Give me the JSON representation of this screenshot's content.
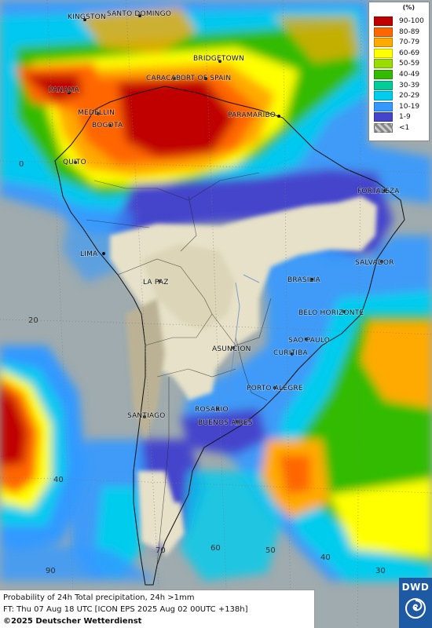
{
  "map": {
    "colors": {
      "ocean": "#9fabae",
      "land_dry": "#e6e1c8",
      "terrain": "#cfc7a8"
    },
    "grid_labels": [
      "0",
      "20",
      "40",
      "70",
      "60",
      "50",
      "40",
      "30",
      "90"
    ],
    "cities": [
      {
        "name": "KINGSTON"
      },
      {
        "name": "SANTO DOMINGO"
      },
      {
        "name": "BRIDGETOWN"
      },
      {
        "name": "PANAMA"
      },
      {
        "name": "CARACAS"
      },
      {
        "name": "PORT OF SPAIN"
      },
      {
        "name": "MEDELLIN"
      },
      {
        "name": "BOGOTA"
      },
      {
        "name": "PARAMARIBO"
      },
      {
        "name": "QUITO"
      },
      {
        "name": "FORTALEZA"
      },
      {
        "name": "LIMA"
      },
      {
        "name": "SALVADOR"
      },
      {
        "name": "BRASILIA"
      },
      {
        "name": "LA PAZ"
      },
      {
        "name": "BELO HORIZONTE"
      },
      {
        "name": "SAO PAULO"
      },
      {
        "name": "ASUNCION"
      },
      {
        "name": "CURITIBA"
      },
      {
        "name": "PORTO ALEGRE"
      },
      {
        "name": "SANTIAGO"
      },
      {
        "name": "ROSARIO"
      },
      {
        "name": "BUENOS AIRES"
      }
    ]
  },
  "legend": {
    "title": "(%)",
    "items": [
      {
        "label": "90-100",
        "color": "#c00000"
      },
      {
        "label": "80-89",
        "color": "#ff6600"
      },
      {
        "label": "70-79",
        "color": "#ffaa00"
      },
      {
        "label": "60-69",
        "color": "#ffff00"
      },
      {
        "label": "50-59",
        "color": "#99dd00"
      },
      {
        "label": "40-49",
        "color": "#33bb00"
      },
      {
        "label": "30-39",
        "color": "#00cc99"
      },
      {
        "label": "20-29",
        "color": "#00ccee"
      },
      {
        "label": "10-19",
        "color": "#3399ff"
      },
      {
        "label": "1-9",
        "color": "#4444cc"
      },
      {
        "label": "<1",
        "color": "#aaaaaa"
      }
    ]
  },
  "info": {
    "line1": "Probability of 24h Total precipitation, 24h >1mm",
    "line2": "FT: Thu 07 Aug 18 UTC [ICON EPS 2025 Aug 02 00UTC +138h]",
    "copyright": "©2025 Deutscher Wetterdienst"
  },
  "logo": {
    "text": "DWD",
    "color": "#1d5aa3"
  }
}
